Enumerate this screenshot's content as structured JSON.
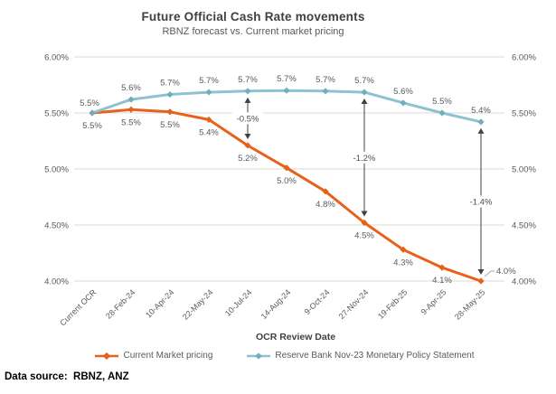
{
  "header": {
    "title": "Future Official Cash Rate movements",
    "subtitle": "RBNZ forecast vs. Current market pricing"
  },
  "footer": {
    "text": "Data source:  RBNZ, ANZ"
  },
  "colors": {
    "market_orange": "#E8611A",
    "rbnz_blue": "#8FC2CF",
    "rbnz_blue_marker": "#74ACBB",
    "gridline": "#D9D9D9",
    "tick_label": "#595959",
    "data_label": "#595959",
    "annotation": "#404040",
    "annotation_text": "#4D4D4D",
    "title_text": "#404040",
    "callout_leader": "#A6A6A6"
  },
  "chart_data": {
    "type": "line",
    "title": "Future Official Cash Rate movements",
    "subtitle": "RBNZ forecast vs. Current market pricing",
    "xlabel": "OCR Review Date",
    "ylabel": "",
    "ylim": [
      4.0,
      6.0
    ],
    "grid": true,
    "legend_position": "bottom",
    "yticks": [
      6.0,
      5.5,
      5.0,
      4.5,
      4.0
    ],
    "ytick_labels": [
      "6.00%",
      "5.50%",
      "5.00%",
      "4.50%",
      "4.00%"
    ],
    "dual_y_axis": true,
    "categories": [
      "Current OCR",
      "28-Feb-24",
      "10-Apr-24",
      "22-May-24",
      "10-Jul-24",
      "14-Aug-24",
      "9-Oct-24",
      "27-Nov-24",
      "19-Feb-25",
      "9-Apr-25",
      "28-May-25"
    ],
    "series": [
      {
        "name": "Current Market pricing",
        "color": "#E8611A",
        "marker": "diamond",
        "label_position": "below",
        "callout_last_label": true,
        "values": [
          5.5,
          5.5,
          5.5,
          5.4,
          5.2,
          5.0,
          4.8,
          4.5,
          4.3,
          4.1,
          4.0
        ],
        "plot_values": [
          5.5,
          5.53,
          5.51,
          5.44,
          5.21,
          5.01,
          4.8,
          4.52,
          4.28,
          4.12,
          4.0
        ],
        "labels": [
          "5.5%",
          "5.5%",
          "5.5%",
          "5.4%",
          "5.2%",
          "5.0%",
          "4.8%",
          "4.5%",
          "4.3%",
          "4.1%",
          "4.0%"
        ]
      },
      {
        "name": "Reserve Bank Nov-23 Monetary Policy Statement",
        "color": "#8FC2CF",
        "marker_color": "#74ACBB",
        "marker": "diamond",
        "label_position": "above",
        "values": [
          5.5,
          5.6,
          5.7,
          5.7,
          5.7,
          5.7,
          5.7,
          5.7,
          5.6,
          5.5,
          5.4
        ],
        "plot_values": [
          5.5,
          5.62,
          5.665,
          5.685,
          5.695,
          5.7,
          5.695,
          5.685,
          5.59,
          5.5,
          5.42
        ],
        "labels": [
          "5.5%",
          "5.6%",
          "5.7%",
          "5.7%",
          "5.7%",
          "5.7%",
          "5.7%",
          "5.7%",
          "5.6%",
          "5.5%",
          "5.4%"
        ]
      }
    ],
    "annotations": [
      {
        "label": "-0.5%",
        "category": "10-Jul-24",
        "x_index": 4
      },
      {
        "label": "-1.2%",
        "category": "27-Nov-24",
        "x_index": 7
      },
      {
        "label": "-1.4%",
        "category": "28-May-25",
        "x_index": 10
      }
    ]
  }
}
